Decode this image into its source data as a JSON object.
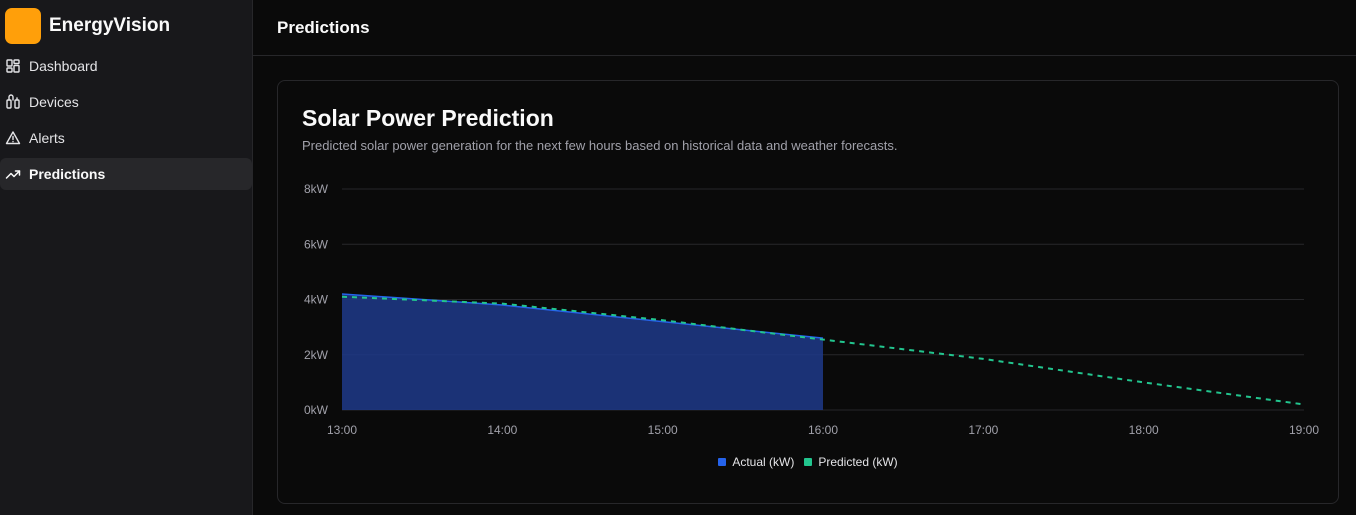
{
  "app": {
    "name": "EnergyVision",
    "logo_color": "#ff9f0a"
  },
  "sidebar": {
    "items": [
      {
        "label": "Dashboard",
        "icon": "layout-dashboard-icon",
        "active": false
      },
      {
        "label": "Devices",
        "icon": "devices-icon",
        "active": false
      },
      {
        "label": "Alerts",
        "icon": "alert-triangle-icon",
        "active": false
      },
      {
        "label": "Predictions",
        "icon": "trending-up-icon",
        "active": true
      }
    ]
  },
  "header": {
    "title": "Predictions"
  },
  "card": {
    "title": "Solar Power Prediction",
    "description": "Predicted solar power generation for the next few hours based on historical data and weather forecasts."
  },
  "colors": {
    "actual": "#2563eb",
    "actual_fill": "#1e3a8a",
    "predicted": "#22c58e"
  },
  "chart_data": {
    "type": "area",
    "x": [
      "13:00",
      "14:00",
      "15:00",
      "16:00",
      "17:00",
      "18:00",
      "19:00"
    ],
    "ylim": [
      0,
      8
    ],
    "yticks": [
      "0kW",
      "2kW",
      "4kW",
      "6kW",
      "8kW"
    ],
    "ytick_values": [
      0,
      2,
      4,
      6,
      8
    ],
    "grid": true,
    "legend_position": "bottom-center",
    "series": [
      {
        "name": "Actual (kW)",
        "values": [
          4.2,
          3.8,
          3.2,
          2.6,
          null,
          null,
          null
        ],
        "style": "filled-area"
      },
      {
        "name": "Predicted (kW)",
        "values": [
          4.1,
          3.85,
          3.25,
          2.55,
          1.85,
          1.0,
          0.2
        ],
        "style": "dashed-line"
      }
    ]
  }
}
